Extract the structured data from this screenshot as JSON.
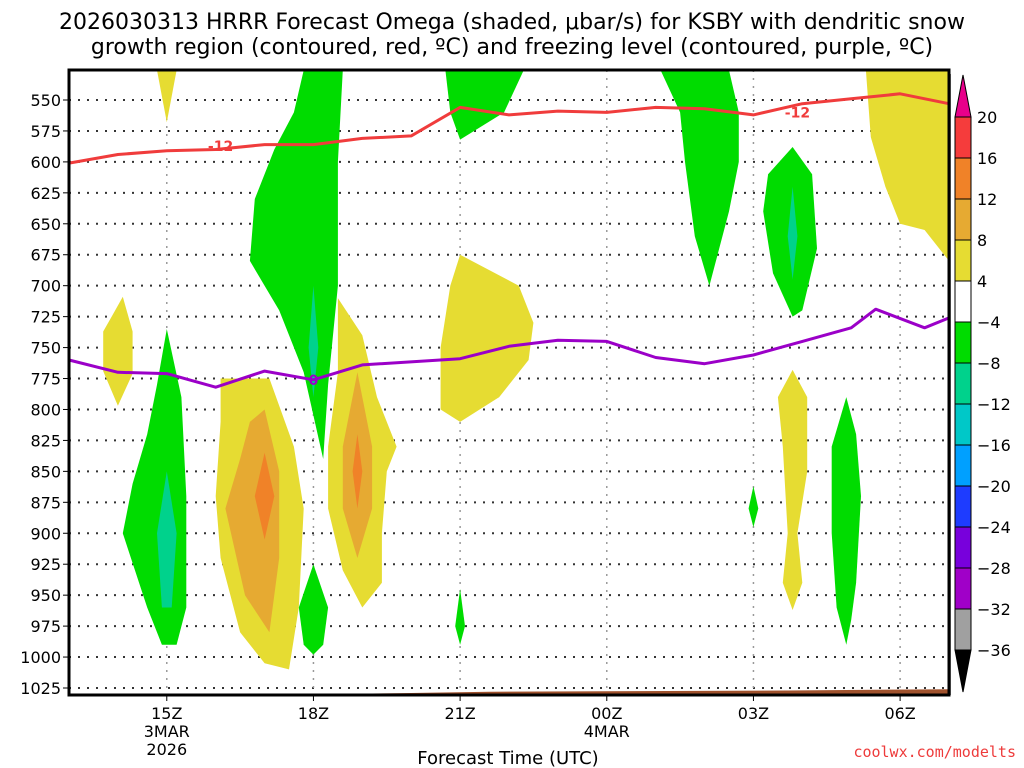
{
  "chart_data": {
    "type": "heatmap",
    "title_lines": [
      "2026030313 HRRR Forecast Omega (shaded, μbar/s) for KSBY with dendritic snow",
      "growth region (contoured, red, ºC) and freezing level (contoured, purple, ºC)"
    ],
    "xlabel": "Forecast Time (UTC)",
    "ylabel": "",
    "credit": "coolwx.com/modelts",
    "x_axis": {
      "unit": "hours since 2026-03-03 13Z",
      "range": [
        0,
        18
      ],
      "ticks": [
        {
          "hour": 2,
          "lines": [
            "15Z",
            "3MAR",
            "2026"
          ]
        },
        {
          "hour": 5,
          "lines": [
            "18Z"
          ]
        },
        {
          "hour": 8,
          "lines": [
            "21Z"
          ]
        },
        {
          "hour": 11,
          "lines": [
            "00Z",
            "4MAR"
          ]
        },
        {
          "hour": 14,
          "lines": [
            "03Z"
          ]
        },
        {
          "hour": 17,
          "lines": [
            "06Z"
          ]
        }
      ]
    },
    "y_axis": {
      "unit": "hPa",
      "range": [
        526,
        1031
      ],
      "inverted": true,
      "ticks": [
        550,
        575,
        600,
        625,
        650,
        675,
        700,
        725,
        750,
        775,
        800,
        825,
        850,
        875,
        900,
        925,
        950,
        975,
        1000,
        1025
      ]
    },
    "grid": true,
    "colorbar": {
      "position": "right",
      "levels": [
        -36,
        -32,
        -28,
        -24,
        -20,
        -16,
        -12,
        -8,
        -4,
        4,
        8,
        12,
        16,
        20
      ],
      "labels": [
        "20",
        "16",
        "12",
        "8",
        "4",
        "-4",
        "-8",
        "-12",
        "-16",
        "-20",
        "-24",
        "-28",
        "-32",
        "-36"
      ],
      "bins": [
        {
          "range": ">20",
          "color": "#e8008a"
        },
        {
          "range": "16 to 20",
          "color": "#f53c3c"
        },
        {
          "range": "12 to 16",
          "color": "#f08228"
        },
        {
          "range": "8 to 12",
          "color": "#e6aa32"
        },
        {
          "range": "4 to 8",
          "color": "#e6dc32"
        },
        {
          "range": "-4 to 4",
          "color": "#ffffff"
        },
        {
          "range": "-8 to -4",
          "color": "#00dc00"
        },
        {
          "range": "-12 to -8",
          "color": "#00d28c"
        },
        {
          "range": "-16 to -12",
          "color": "#00c8c8"
        },
        {
          "range": "-20 to -16",
          "color": "#00a0ff"
        },
        {
          "range": "-24 to -20",
          "color": "#1e3cff"
        },
        {
          "range": "-28 to -24",
          "color": "#7800dc"
        },
        {
          "range": "-32 to -28",
          "color": "#a000c8"
        },
        {
          "range": "-36 to -32",
          "color": "#a0a0a0"
        },
        {
          "range": "<-36",
          "color": "#000000"
        }
      ]
    },
    "shaded_regions": [
      {
        "name": "omega-pos-1",
        "level": "4 to 8",
        "points": [
          [
            1.8,
            526
          ],
          [
            2.2,
            526
          ],
          [
            2.0,
            568
          ]
        ]
      },
      {
        "name": "omega-pos-2",
        "level": "4 to 8",
        "points": [
          [
            0.9,
            723
          ],
          [
            1.1,
            709
          ],
          [
            1.3,
            737
          ],
          [
            1.3,
            771
          ],
          [
            1.0,
            797
          ],
          [
            0.7,
            769
          ],
          [
            0.7,
            737
          ]
        ]
      },
      {
        "name": "omega-neg-1",
        "level": "-8 to -4",
        "points": [
          [
            2.0,
            735
          ],
          [
            2.3,
            790
          ],
          [
            2.4,
            870
          ],
          [
            2.4,
            960
          ],
          [
            2.2,
            990
          ],
          [
            1.9,
            990
          ],
          [
            1.6,
            960
          ],
          [
            1.1,
            900
          ],
          [
            1.3,
            860
          ],
          [
            1.6,
            820
          ],
          [
            1.8,
            780
          ]
        ]
      },
      {
        "name": "omega-neg-1b",
        "level": "-12 to -8",
        "points": [
          [
            2.0,
            850
          ],
          [
            2.2,
            900
          ],
          [
            2.1,
            960
          ],
          [
            1.9,
            960
          ],
          [
            1.8,
            900
          ]
        ]
      },
      {
        "name": "omega-pos-3",
        "level": "4 to 8",
        "points": [
          [
            3.1,
            775
          ],
          [
            4.1,
            775
          ],
          [
            4.6,
            830
          ],
          [
            4.8,
            880
          ],
          [
            4.7,
            960
          ],
          [
            4.5,
            1010
          ],
          [
            4.0,
            1005
          ],
          [
            3.5,
            980
          ],
          [
            3.1,
            920
          ],
          [
            3.0,
            870
          ],
          [
            3.1,
            810
          ]
        ]
      },
      {
        "name": "omega-pos-3b",
        "level": "8 to 12",
        "points": [
          [
            4.0,
            800
          ],
          [
            4.3,
            850
          ],
          [
            4.3,
            920
          ],
          [
            4.1,
            980
          ],
          [
            3.6,
            950
          ],
          [
            3.2,
            880
          ],
          [
            3.5,
            840
          ],
          [
            3.7,
            810
          ]
        ]
      },
      {
        "name": "omega-pos-3c",
        "level": "12 to 16",
        "points": [
          [
            4.0,
            835
          ],
          [
            4.2,
            870
          ],
          [
            4.0,
            905
          ],
          [
            3.8,
            870
          ]
        ]
      },
      {
        "name": "omega-neg-2",
        "level": "-8 to -4",
        "points": [
          [
            4.8,
            526
          ],
          [
            5.6,
            526
          ],
          [
            5.5,
            600
          ],
          [
            5.5,
            700
          ],
          [
            5.3,
            780
          ],
          [
            5.2,
            840
          ],
          [
            4.8,
            770
          ],
          [
            4.3,
            720
          ],
          [
            3.7,
            680
          ],
          [
            3.8,
            630
          ],
          [
            4.2,
            590
          ],
          [
            4.6,
            560
          ]
        ]
      },
      {
        "name": "omega-neg-2b",
        "level": "-12 to -8",
        "points": [
          [
            5.0,
            700
          ],
          [
            5.1,
            750
          ],
          [
            5.0,
            790
          ],
          [
            4.9,
            750
          ]
        ]
      },
      {
        "name": "omega-neg-3",
        "level": "-8 to -4",
        "points": [
          [
            5.0,
            925
          ],
          [
            5.3,
            960
          ],
          [
            5.2,
            990
          ],
          [
            5.0,
            998
          ],
          [
            4.8,
            990
          ],
          [
            4.7,
            960
          ]
        ]
      },
      {
        "name": "omega-pos-4",
        "level": "4 to 8",
        "points": [
          [
            5.5,
            710
          ],
          [
            6.0,
            740
          ],
          [
            6.3,
            790
          ],
          [
            6.7,
            830
          ],
          [
            6.5,
            850
          ],
          [
            6.4,
            900
          ],
          [
            6.4,
            940
          ],
          [
            6.0,
            960
          ],
          [
            5.6,
            930
          ],
          [
            5.3,
            880
          ],
          [
            5.3,
            830
          ],
          [
            5.5,
            770
          ]
        ]
      },
      {
        "name": "omega-pos-4b",
        "level": "8 to 12",
        "points": [
          [
            5.9,
            770
          ],
          [
            6.2,
            830
          ],
          [
            6.2,
            880
          ],
          [
            5.9,
            920
          ],
          [
            5.6,
            880
          ],
          [
            5.6,
            830
          ]
        ]
      },
      {
        "name": "omega-pos-4c",
        "level": "12 to 16",
        "points": [
          [
            5.9,
            820
          ],
          [
            6.0,
            850
          ],
          [
            5.9,
            880
          ],
          [
            5.8,
            850
          ]
        ]
      },
      {
        "name": "omega-neg-4",
        "level": "-8 to -4",
        "points": [
          [
            8.0,
            945
          ],
          [
            8.1,
            975
          ],
          [
            8.0,
            990
          ],
          [
            7.9,
            975
          ]
        ]
      },
      {
        "name": "omega-pos-5",
        "level": "4 to 8",
        "points": [
          [
            8.0,
            675
          ],
          [
            9.2,
            700
          ],
          [
            9.5,
            730
          ],
          [
            9.4,
            760
          ],
          [
            8.8,
            790
          ],
          [
            8.0,
            810
          ],
          [
            7.6,
            800
          ],
          [
            7.6,
            750
          ],
          [
            7.8,
            700
          ]
        ]
      },
      {
        "name": "omega-neg-5",
        "level": "-8 to -4",
        "points": [
          [
            7.7,
            526
          ],
          [
            9.3,
            526
          ],
          [
            8.9,
            560
          ],
          [
            8.0,
            582
          ],
          [
            7.8,
            560
          ]
        ]
      },
      {
        "name": "omega-neg-6",
        "level": "-8 to -4",
        "points": [
          [
            12.1,
            526
          ],
          [
            13.5,
            526
          ],
          [
            13.7,
            560
          ],
          [
            13.7,
            600
          ],
          [
            13.5,
            640
          ],
          [
            13.1,
            700
          ],
          [
            12.8,
            660
          ],
          [
            12.6,
            600
          ],
          [
            12.5,
            560
          ]
        ]
      },
      {
        "name": "omega-neg-7",
        "level": "-8 to -4",
        "points": [
          [
            14.8,
            588
          ],
          [
            15.2,
            610
          ],
          [
            15.3,
            670
          ],
          [
            15.0,
            720
          ],
          [
            14.8,
            725
          ],
          [
            14.4,
            690
          ],
          [
            14.2,
            640
          ],
          [
            14.3,
            610
          ]
        ]
      },
      {
        "name": "omega-neg-7b",
        "level": "-12 to -8",
        "points": [
          [
            14.8,
            620
          ],
          [
            14.9,
            660
          ],
          [
            14.8,
            695
          ],
          [
            14.7,
            660
          ]
        ]
      },
      {
        "name": "omega-pos-6",
        "level": "4 to 8",
        "points": [
          [
            16.3,
            526
          ],
          [
            18.0,
            526
          ],
          [
            18.0,
            680
          ],
          [
            17.5,
            655
          ],
          [
            17.0,
            650
          ],
          [
            16.7,
            620
          ],
          [
            16.4,
            580
          ]
        ]
      },
      {
        "name": "omega-neg-8",
        "level": "-8 to -4",
        "points": [
          [
            14.0,
            862
          ],
          [
            14.1,
            880
          ],
          [
            14.0,
            895
          ],
          [
            13.9,
            880
          ]
        ]
      },
      {
        "name": "omega-pos-7",
        "level": "4 to 8",
        "points": [
          [
            14.8,
            768
          ],
          [
            15.1,
            790
          ],
          [
            15.1,
            850
          ],
          [
            14.9,
            900
          ],
          [
            15.0,
            940
          ],
          [
            14.8,
            962
          ],
          [
            14.6,
            940
          ],
          [
            14.7,
            900
          ],
          [
            14.6,
            830
          ],
          [
            14.5,
            790
          ]
        ]
      },
      {
        "name": "omega-neg-9",
        "level": "-8 to -4",
        "points": [
          [
            15.9,
            790
          ],
          [
            16.1,
            820
          ],
          [
            16.2,
            870
          ],
          [
            16.1,
            940
          ],
          [
            16.0,
            970
          ],
          [
            15.9,
            990
          ],
          [
            15.7,
            960
          ],
          [
            15.6,
            900
          ],
          [
            15.6,
            830
          ]
        ]
      }
    ],
    "terrain": {
      "name": "ground-surface",
      "color": "#a0522d",
      "points": [
        [
          0,
          1031
        ],
        [
          0,
          1032
        ],
        [
          4.4,
          1032
        ],
        [
          4.6,
          1031
        ],
        [
          5.0,
          1030
        ],
        [
          7.0,
          1029
        ],
        [
          8.6,
          1028
        ],
        [
          14.7,
          1027
        ],
        [
          18,
          1026
        ],
        [
          18,
          1033
        ],
        [
          0,
          1033
        ]
      ]
    },
    "contours": [
      {
        "name": "dendritic-growth-minus12",
        "value": -12,
        "label": "-12",
        "color": "#f03c3c",
        "points": [
          [
            0,
            601
          ],
          [
            1.0,
            594
          ],
          [
            2.0,
            591
          ],
          [
            3.0,
            590
          ],
          [
            4.0,
            586
          ],
          [
            5.0,
            586
          ],
          [
            6.0,
            581
          ],
          [
            7.0,
            579
          ],
          [
            8.0,
            556
          ],
          [
            9.0,
            562
          ],
          [
            10.0,
            559
          ],
          [
            11.0,
            560
          ],
          [
            12.0,
            556
          ],
          [
            13.0,
            557
          ],
          [
            14.0,
            562
          ],
          [
            15.0,
            553
          ],
          [
            16.0,
            549
          ],
          [
            17.0,
            545
          ],
          [
            18.0,
            553
          ]
        ],
        "label_positions": [
          [
            3.1,
            587
          ],
          [
            14.9,
            560
          ]
        ]
      },
      {
        "name": "freezing-level-0",
        "value": 0,
        "label": "0",
        "color": "#9b00c8",
        "points": [
          [
            0,
            760
          ],
          [
            1.0,
            770
          ],
          [
            2.0,
            771
          ],
          [
            3.0,
            782
          ],
          [
            4.0,
            769
          ],
          [
            5.0,
            776
          ],
          [
            6.0,
            764
          ],
          [
            8.0,
            759
          ],
          [
            9.0,
            749
          ],
          [
            10.0,
            744
          ],
          [
            11.0,
            745
          ],
          [
            12.0,
            758
          ],
          [
            13.0,
            763
          ],
          [
            14.0,
            756
          ],
          [
            15.0,
            745
          ],
          [
            16.0,
            734
          ],
          [
            16.5,
            719
          ],
          [
            17.5,
            734
          ],
          [
            18.0,
            726
          ]
        ],
        "label_positions": [
          [
            5.0,
            776
          ]
        ]
      }
    ]
  }
}
